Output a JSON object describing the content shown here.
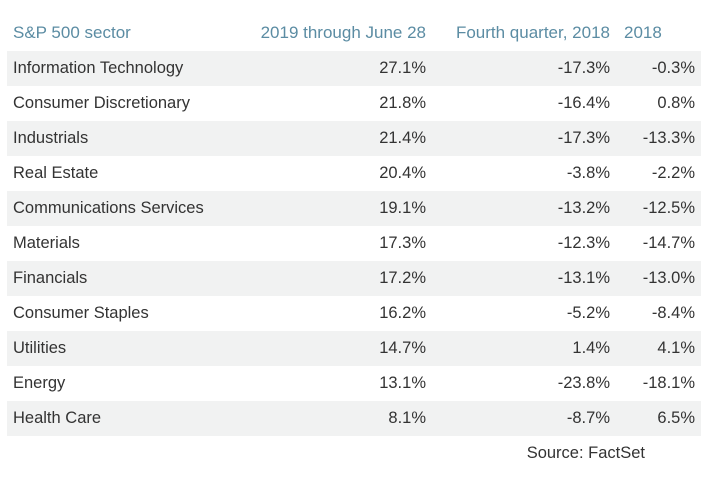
{
  "chart_data": {
    "type": "table",
    "columns": [
      "S&P 500 sector",
      "2019 through June 28",
      "Fourth quarter, 2018",
      "2018"
    ],
    "header_color": "#5b8ca3",
    "stripe_color": "#f1f2f2",
    "rows": [
      {
        "sector": "Information Technology",
        "ytd_2019": "27.1%",
        "q4_2018": "-17.3%",
        "year_2018": "-0.3%"
      },
      {
        "sector": "Consumer Discretionary",
        "ytd_2019": "21.8%",
        "q4_2018": "-16.4%",
        "year_2018": "0.8%"
      },
      {
        "sector": "Industrials",
        "ytd_2019": "21.4%",
        "q4_2018": "-17.3%",
        "year_2018": "-13.3%"
      },
      {
        "sector": "Real Estate",
        "ytd_2019": "20.4%",
        "q4_2018": "-3.8%",
        "year_2018": "-2.2%"
      },
      {
        "sector": "Communications Services",
        "ytd_2019": "19.1%",
        "q4_2018": "-13.2%",
        "year_2018": "-12.5%"
      },
      {
        "sector": "Materials",
        "ytd_2019": "17.3%",
        "q4_2018": "-12.3%",
        "year_2018": "-14.7%"
      },
      {
        "sector": "Financials",
        "ytd_2019": "17.2%",
        "q4_2018": "-13.1%",
        "year_2018": "-13.0%"
      },
      {
        "sector": "Consumer Staples",
        "ytd_2019": "16.2%",
        "q4_2018": "-5.2%",
        "year_2018": "-8.4%"
      },
      {
        "sector": "Utilities",
        "ytd_2019": "14.7%",
        "q4_2018": "1.4%",
        "year_2018": "4.1%"
      },
      {
        "sector": "Energy",
        "ytd_2019": "13.1%",
        "q4_2018": "-23.8%",
        "year_2018": "-18.1%"
      },
      {
        "sector": "Health Care",
        "ytd_2019": "8.1%",
        "q4_2018": "-8.7%",
        "year_2018": "6.5%"
      }
    ],
    "source": "Source: FactSet"
  }
}
